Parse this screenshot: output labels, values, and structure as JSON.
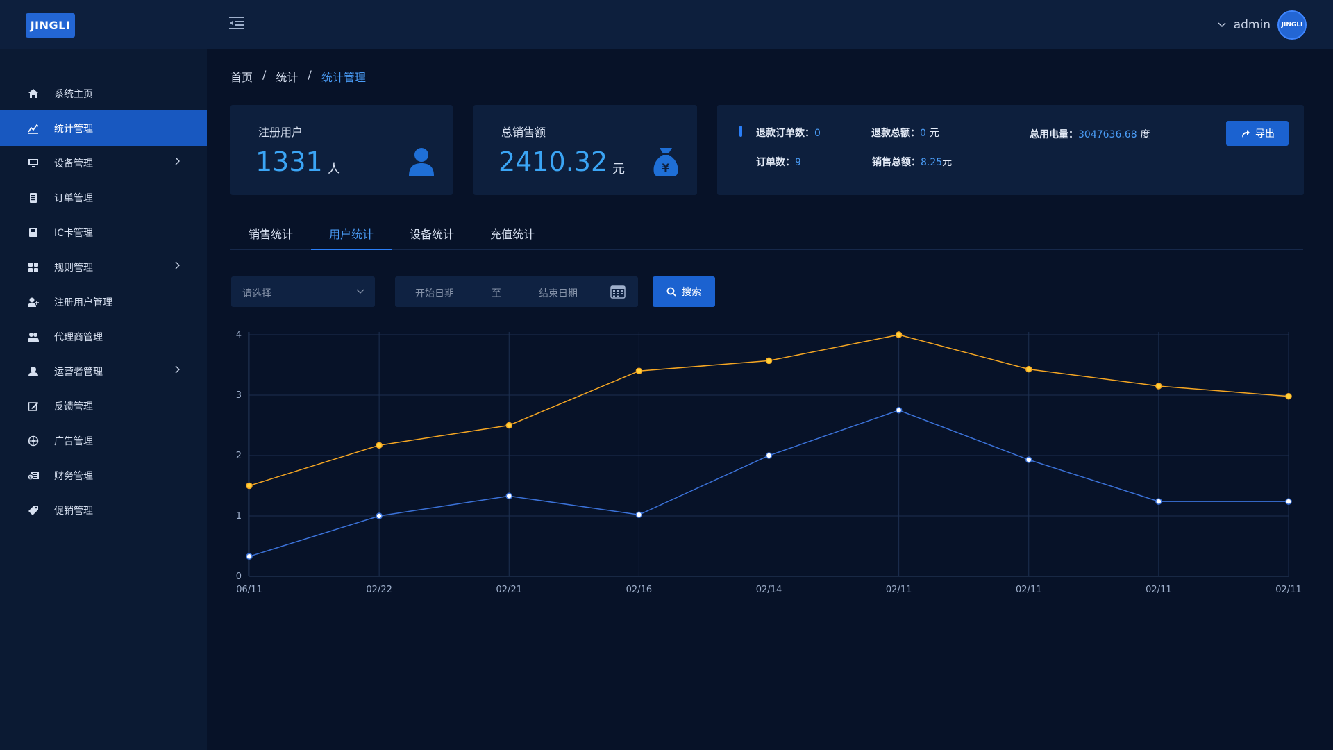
{
  "header": {
    "logo_text": "JINGLI",
    "user_name": "admin",
    "avatar_text": "JINGLI"
  },
  "sidebar": {
    "items": [
      {
        "label": "系统主页",
        "icon": "home-icon"
      },
      {
        "label": "统计管理",
        "icon": "chart-line-icon",
        "active": true
      },
      {
        "label": "设备管理",
        "icon": "monitor-icon",
        "expandable": true
      },
      {
        "label": "订单管理",
        "icon": "document-icon"
      },
      {
        "label": "IC卡管理",
        "icon": "save-card-icon"
      },
      {
        "label": "规则管理",
        "icon": "grid-icon",
        "expandable": true
      },
      {
        "label": "注册用户管理",
        "icon": "user-add-icon"
      },
      {
        "label": "代理商管理",
        "icon": "users-icon"
      },
      {
        "label": "运营者管理",
        "icon": "user-icon",
        "expandable": true
      },
      {
        "label": "反馈管理",
        "icon": "edit-icon"
      },
      {
        "label": "广告管理",
        "icon": "target-icon"
      },
      {
        "label": "财务管理",
        "icon": "money-icon"
      },
      {
        "label": "促销管理",
        "icon": "tag-icon"
      }
    ]
  },
  "breadcrumb": [
    "首页",
    "统计",
    "统计管理"
  ],
  "cards": {
    "users": {
      "label": "注册用户",
      "value": "1331",
      "unit": "人"
    },
    "sales": {
      "label": "总销售额",
      "value": "2410.32",
      "unit": "元"
    }
  },
  "stats": {
    "refund_orders_label": "退款订单数：",
    "refund_orders_value": "0",
    "refund_total_label": "退款总额：",
    "refund_total_value": "0",
    "refund_total_unit": "元",
    "power_label": "总用电量：",
    "power_value": "3047636.68",
    "power_unit": "度",
    "orders_label": "订单数：",
    "orders_value": "9",
    "sales_total_label": "销售总额：",
    "sales_total_value": "8.25",
    "sales_total_unit": "元",
    "export_label": "导出"
  },
  "tabs": [
    "销售统计",
    "用户统计",
    "设备统计",
    "充值统计"
  ],
  "active_tab": 1,
  "filter": {
    "select_placeholder": "请选择",
    "start_placeholder": "开始日期",
    "range_sep": "至",
    "end_placeholder": "结束日期",
    "search_label": "搜索"
  },
  "colors": {
    "accent": "#1b62d0",
    "value_blue": "#3ba5f5",
    "series_orange": "#f5a623",
    "series_blue": "#3b72d9"
  },
  "chart_data": {
    "type": "line",
    "categories": [
      "06/11",
      "02/22",
      "02/21",
      "02/16",
      "02/14",
      "02/11",
      "02/11",
      "02/11",
      "02/11"
    ],
    "ylim": [
      0,
      4
    ],
    "yticks": [
      0,
      1,
      2,
      3,
      4
    ],
    "grid": true,
    "series": [
      {
        "color": "#f5a623",
        "values": [
          1.5,
          2.17,
          2.5,
          3.4,
          3.57,
          4.0,
          3.43,
          3.15,
          2.98
        ]
      },
      {
        "color": "#3b72d9",
        "values": [
          0.33,
          1.0,
          1.33,
          1.02,
          2.0,
          2.75,
          1.93,
          1.24,
          1.24
        ]
      }
    ]
  }
}
